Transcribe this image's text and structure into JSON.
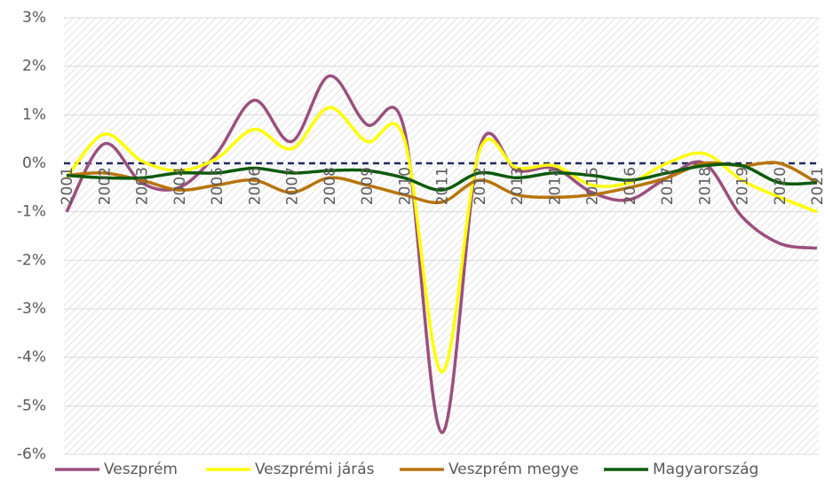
{
  "chart_data": {
    "type": "line",
    "categories": [
      "2001",
      "2002",
      "2003",
      "2004",
      "2005",
      "2006",
      "2007",
      "2008",
      "2009",
      "2010",
      "2011",
      "2012",
      "2013",
      "2014",
      "2015",
      "2016",
      "2017",
      "2018",
      "2019",
      "2020",
      "2021"
    ],
    "series": [
      {
        "name": "Veszprém",
        "color": "#9b4f7e",
        "values": [
          -1.0,
          0.4,
          -0.4,
          -0.5,
          0.2,
          1.3,
          0.45,
          1.8,
          0.8,
          0.7,
          -5.55,
          0.3,
          -0.15,
          -0.1,
          -0.6,
          -0.75,
          -0.3,
          0.0,
          -1.1,
          -1.65,
          -1.75
        ]
      },
      {
        "name": "Veszprémi járás",
        "color": "#ffff00",
        "values": [
          -0.3,
          0.6,
          0.05,
          -0.15,
          0.1,
          0.7,
          0.3,
          1.15,
          0.45,
          0.5,
          -4.3,
          0.25,
          -0.1,
          -0.05,
          -0.45,
          -0.4,
          0.0,
          0.2,
          -0.35,
          -0.7,
          -1.0
        ]
      },
      {
        "name": "Veszprém megye",
        "color": "#b8740b",
        "values": [
          -0.25,
          -0.2,
          -0.35,
          -0.55,
          -0.45,
          -0.35,
          -0.6,
          -0.3,
          -0.45,
          -0.65,
          -0.8,
          -0.35,
          -0.65,
          -0.7,
          -0.65,
          -0.5,
          -0.3,
          0.0,
          -0.05,
          0.0,
          -0.4
        ]
      },
      {
        "name": "Magyarország",
        "color": "#0b5a0b",
        "values": [
          -0.25,
          -0.3,
          -0.3,
          -0.2,
          -0.2,
          -0.1,
          -0.2,
          -0.15,
          -0.15,
          -0.3,
          -0.55,
          -0.2,
          -0.3,
          -0.2,
          -0.25,
          -0.35,
          -0.2,
          -0.05,
          -0.05,
          -0.4,
          -0.4
        ]
      }
    ],
    "ylim": [
      -6,
      3
    ],
    "yticks": [
      {
        "value": -6,
        "label": "-6%"
      },
      {
        "value": -5,
        "label": "-5%"
      },
      {
        "value": -4,
        "label": "-4%"
      },
      {
        "value": -3,
        "label": "-3%"
      },
      {
        "value": -2,
        "label": "-2%"
      },
      {
        "value": -1,
        "label": "-1%"
      },
      {
        "value": 0,
        "label": "0%"
      },
      {
        "value": 1,
        "label": "1%"
      },
      {
        "value": 2,
        "label": "2%"
      },
      {
        "value": 3,
        "label": "3%"
      }
    ],
    "grid": true,
    "smooth": true,
    "legend": "bottom"
  }
}
